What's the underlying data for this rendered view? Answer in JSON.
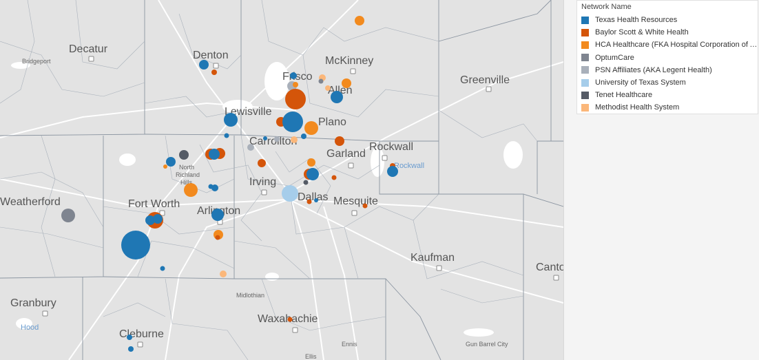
{
  "legend": {
    "title": "Network Name",
    "items": [
      {
        "label": "Texas Health Resources",
        "color": "#1f77b4"
      },
      {
        "label": "Baylor Scott & White Health",
        "color": "#d4550a"
      },
      {
        "label": "HCA Healthcare (FKA Hospital Corporation of America)",
        "color": "#f28a1e"
      },
      {
        "label": "OptumCare",
        "color": "#7f8590"
      },
      {
        "label": "PSN Affiliates (AKA Legent Health)",
        "color": "#a9b0ba"
      },
      {
        "label": "University of Texas System",
        "color": "#a6cdea"
      },
      {
        "label": "Tenet Healthcare",
        "color": "#555b66"
      },
      {
        "label": "Methodist Health System",
        "color": "#fbb77a"
      }
    ]
  },
  "map": {
    "cities_major": [
      "Decatur",
      "Denton",
      "McKinney",
      "Greenville",
      "Frisco",
      "Lewisville",
      "Plano",
      "Carrollton",
      "Rockwall",
      "Garland",
      "Irving",
      "Dallas",
      "Mesquite",
      "Weatherford",
      "Fort Worth",
      "Arlington",
      "Kaufman",
      "Canton",
      "Granbury",
      "Waxahachie",
      "Cleburne"
    ],
    "cities_minor": [
      "Bridgeport",
      "Midlothian",
      "Ennis",
      "Gun Barrel City",
      "Ellis"
    ],
    "cities_water": [
      "Rockwall",
      "Hood"
    ],
    "cities_multiline": [
      "North",
      "Richland",
      "Hills",
      "Allen"
    ]
  }
}
